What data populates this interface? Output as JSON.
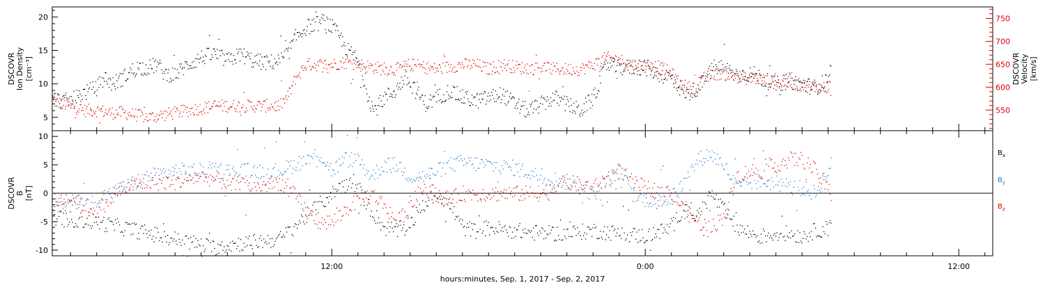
{
  "figure": {
    "xlabel": "hours:minutes, Sep.  1, 2017 - Sep.  2, 2017",
    "x_tick_labels": [
      {
        "hour": 12,
        "label": "12:00"
      },
      {
        "hour": 24,
        "label": "0:00"
      },
      {
        "hour": 36,
        "label": "12:00"
      }
    ],
    "xlim_hours": [
      1.3,
      37.3
    ]
  },
  "chart_data": [
    {
      "type": "scatter",
      "panel": "top",
      "x_units": "hours since 0:00 Sep. 1, 2017",
      "ylabel_left": [
        "DSCOVR",
        "Ion Density",
        "[cm⁻³]"
      ],
      "ylabel_right": [
        "DSCOVR",
        "Velocity",
        "[km/s]"
      ],
      "ylim_left": [
        3,
        21.5
      ],
      "yticks_left": [
        5,
        10,
        15,
        20
      ],
      "ylim_right": [
        505,
        775
      ],
      "yticks_right": [
        550,
        600,
        650,
        700,
        750
      ],
      "series": [
        {
          "axis": "left",
          "color": "#000000",
          "points": [
            [
              1.3,
              8
            ],
            [
              1.6,
              7.5
            ],
            [
              2,
              7.5
            ],
            [
              2.4,
              8.5
            ],
            [
              3,
              9.5
            ],
            [
              3.3,
              11
            ],
            [
              3.6,
              10
            ],
            [
              4,
              11
            ],
            [
              4.5,
              12.5
            ],
            [
              5,
              12.5
            ],
            [
              5.3,
              13
            ],
            [
              5.6,
              11.5
            ],
            [
              6,
              11.5
            ],
            [
              6.5,
              13
            ],
            [
              7,
              14
            ],
            [
              7.5,
              14.5
            ],
            [
              8,
              13.5
            ],
            [
              8.5,
              14.5
            ],
            [
              9,
              13.5
            ],
            [
              9.5,
              13.2
            ],
            [
              10,
              13.5
            ],
            [
              10.3,
              14.5
            ],
            [
              10.6,
              17
            ],
            [
              11,
              18.5
            ],
            [
              11.4,
              19
            ],
            [
              11.7,
              19.5
            ],
            [
              12,
              18.5
            ],
            [
              12.3,
              17
            ],
            [
              12.6,
              15
            ],
            [
              12.9,
              14
            ],
            [
              13.2,
              11
            ],
            [
              13.4,
              8
            ],
            [
              13.6,
              6
            ],
            [
              14,
              8
            ],
            [
              14.4,
              9
            ],
            [
              14.8,
              11
            ],
            [
              15.2,
              9
            ],
            [
              15.6,
              7
            ],
            [
              16,
              8
            ],
            [
              16.5,
              9
            ],
            [
              17,
              8
            ],
            [
              17.5,
              7.5
            ],
            [
              18,
              8
            ],
            [
              18.5,
              8.5
            ],
            [
              19,
              7
            ],
            [
              19.5,
              6
            ],
            [
              20,
              7
            ],
            [
              20.5,
              8
            ],
            [
              21,
              7
            ],
            [
              21.5,
              6
            ],
            [
              22,
              8
            ],
            [
              22.5,
              13
            ],
            [
              23,
              12.5
            ],
            [
              23.5,
              12.5
            ],
            [
              24,
              12.5
            ],
            [
              24.5,
              11.5
            ],
            [
              25,
              11
            ],
            [
              25.3,
              9.5
            ],
            [
              25.6,
              8.5
            ],
            [
              26,
              9.5
            ],
            [
              26.3,
              11
            ],
            [
              26.6,
              12.5
            ],
            [
              27,
              12.5
            ],
            [
              27.4,
              11.5
            ],
            [
              27.8,
              11.5
            ],
            [
              28.2,
              11.5
            ],
            [
              28.6,
              10.5
            ],
            [
              29,
              10
            ],
            [
              29.5,
              10.5
            ],
            [
              30,
              10
            ],
            [
              30.5,
              9.5
            ],
            [
              30.9,
              10.5
            ],
            [
              31.1,
              12
            ]
          ]
        },
        {
          "axis": "right",
          "color": "#e00000",
          "points": [
            [
              1.3,
              570
            ],
            [
              1.6,
              565
            ],
            [
              2,
              560
            ],
            [
              2.5,
              550
            ],
            [
              3,
              550
            ],
            [
              3.5,
              545
            ],
            [
              4,
              545
            ],
            [
              4.5,
              540
            ],
            [
              5,
              535
            ],
            [
              5.5,
              540
            ],
            [
              6,
              545
            ],
            [
              6.5,
              550
            ],
            [
              7,
              555
            ],
            [
              7.5,
              560
            ],
            [
              8,
              560
            ],
            [
              8.5,
              560
            ],
            [
              9,
              560
            ],
            [
              9.5,
              560
            ],
            [
              10,
              560
            ],
            [
              10.3,
              580
            ],
            [
              10.6,
              620
            ],
            [
              11,
              650
            ],
            [
              11.5,
              650
            ],
            [
              12,
              650
            ],
            [
              12.5,
              655
            ],
            [
              13,
              650
            ],
            [
              13.5,
              645
            ],
            [
              14,
              640
            ],
            [
              14.5,
              640
            ],
            [
              15,
              650
            ],
            [
              15.5,
              645
            ],
            [
              16,
              640
            ],
            [
              16.5,
              645
            ],
            [
              17,
              650
            ],
            [
              17.5,
              650
            ],
            [
              18,
              640
            ],
            [
              18.5,
              650
            ],
            [
              19,
              645
            ],
            [
              19.5,
              640
            ],
            [
              20,
              645
            ],
            [
              20.5,
              640
            ],
            [
              21,
              640
            ],
            [
              21.5,
              640
            ],
            [
              22,
              650
            ],
            [
              22.5,
              665
            ],
            [
              23,
              660
            ],
            [
              23.5,
              650
            ],
            [
              24,
              650
            ],
            [
              24.5,
              645
            ],
            [
              25,
              630
            ],
            [
              25.3,
              610
            ],
            [
              25.6,
              600
            ],
            [
              26,
              600
            ],
            [
              26.3,
              620
            ],
            [
              26.6,
              630
            ],
            [
              27,
              630
            ],
            [
              27.4,
              625
            ],
            [
              27.8,
              620
            ],
            [
              28.2,
              620
            ],
            [
              28.6,
              615
            ],
            [
              29,
              610
            ],
            [
              29.5,
              610
            ],
            [
              30,
              605
            ],
            [
              30.5,
              600
            ],
            [
              30.9,
              600
            ],
            [
              31.1,
              605
            ]
          ]
        }
      ]
    },
    {
      "type": "scatter",
      "panel": "bottom",
      "x_units": "hours since 0:00 Sep. 1, 2017",
      "ylabel_left": [
        "DSCOVR",
        "B",
        "[nT]"
      ],
      "ylim": [
        -11,
        11
      ],
      "yticks": [
        -10,
        -5,
        0,
        5,
        10
      ],
      "zero_line": true,
      "legend_placement": "right",
      "series": [
        {
          "name": "B",
          "subscript": "x",
          "color": "#000000",
          "points": [
            [
              1.3,
              -4
            ],
            [
              2,
              -4.5
            ],
            [
              3,
              -5
            ],
            [
              4,
              -6
            ],
            [
              5,
              -7
            ],
            [
              6,
              -8
            ],
            [
              7,
              -9
            ],
            [
              7.5,
              -9.5
            ],
            [
              8,
              -9
            ],
            [
              9,
              -8.5
            ],
            [
              10,
              -8
            ],
            [
              10.5,
              -6
            ],
            [
              11,
              -4
            ],
            [
              11.5,
              -2
            ],
            [
              12,
              0
            ],
            [
              12.5,
              2
            ],
            [
              13,
              1
            ],
            [
              13.5,
              -3
            ],
            [
              14,
              -6
            ],
            [
              14.5,
              -6.5
            ],
            [
              15,
              -5
            ],
            [
              15.5,
              -2
            ],
            [
              16,
              0
            ],
            [
              16.5,
              -2
            ],
            [
              17,
              -6
            ],
            [
              17.5,
              -6.5
            ],
            [
              18,
              -6
            ],
            [
              19,
              -6.5
            ],
            [
              20,
              -7
            ],
            [
              21,
              -7
            ],
            [
              22,
              -6.5
            ],
            [
              23,
              -7
            ],
            [
              24,
              -7.5
            ],
            [
              25,
              -6
            ],
            [
              25.5,
              -2
            ],
            [
              26,
              -4
            ],
            [
              26.5,
              0
            ],
            [
              27,
              -3
            ],
            [
              27.5,
              -6
            ],
            [
              28,
              -7
            ],
            [
              28.5,
              -7.5
            ],
            [
              29,
              -7
            ],
            [
              29.5,
              -7
            ],
            [
              30,
              -7.5
            ],
            [
              30.5,
              -6.5
            ],
            [
              31.1,
              -6
            ]
          ]
        },
        {
          "name": "B",
          "subscript": "y",
          "color": "#1f78d1",
          "points": [
            [
              1.3,
              -3
            ],
            [
              2,
              -1
            ],
            [
              3,
              -1
            ],
            [
              4,
              1
            ],
            [
              5,
              3
            ],
            [
              6,
              4
            ],
            [
              7,
              4
            ],
            [
              8,
              4
            ],
            [
              9,
              4
            ],
            [
              10,
              4
            ],
            [
              10.5,
              5
            ],
            [
              11,
              6
            ],
            [
              11.5,
              7
            ],
            [
              12,
              4
            ],
            [
              12.5,
              6
            ],
            [
              13,
              6
            ],
            [
              13.5,
              3
            ],
            [
              14,
              5
            ],
            [
              14.5,
              5
            ],
            [
              15,
              3
            ],
            [
              15.5,
              3
            ],
            [
              16,
              4
            ],
            [
              16.5,
              5
            ],
            [
              17,
              5.5
            ],
            [
              18,
              5
            ],
            [
              19,
              4.5
            ],
            [
              20,
              3
            ],
            [
              21,
              2
            ],
            [
              22,
              0
            ],
            [
              22.5,
              2
            ],
            [
              23,
              4
            ],
            [
              23.5,
              0
            ],
            [
              24,
              -1
            ],
            [
              25,
              -1
            ],
            [
              25.5,
              2
            ],
            [
              26,
              6
            ],
            [
              26.5,
              7
            ],
            [
              27,
              5
            ],
            [
              27.5,
              1
            ],
            [
              28,
              2
            ],
            [
              28.5,
              2
            ],
            [
              29,
              2
            ],
            [
              29.5,
              1
            ],
            [
              30,
              1
            ],
            [
              30.5,
              0
            ],
            [
              31.1,
              5
            ]
          ]
        },
        {
          "name": "B",
          "subscript": "z",
          "color": "#e00000",
          "points": [
            [
              1.3,
              -1
            ],
            [
              2,
              -1
            ],
            [
              3,
              -3
            ],
            [
              4,
              1
            ],
            [
              5,
              2
            ],
            [
              6,
              2
            ],
            [
              7,
              3
            ],
            [
              8,
              2
            ],
            [
              9,
              1
            ],
            [
              10,
              2
            ],
            [
              10.5,
              0
            ],
            [
              11,
              -3
            ],
            [
              11.5,
              -5
            ],
            [
              12,
              -5
            ],
            [
              12.5,
              -3
            ],
            [
              13,
              -1
            ],
            [
              13.5,
              0
            ],
            [
              14,
              -2
            ],
            [
              14.5,
              -5
            ],
            [
              15,
              -2
            ],
            [
              15.5,
              1
            ],
            [
              16,
              0
            ],
            [
              16.5,
              -1
            ],
            [
              17,
              0
            ],
            [
              18,
              0
            ],
            [
              19,
              0
            ],
            [
              20,
              0
            ],
            [
              21,
              2
            ],
            [
              22,
              1
            ],
            [
              23,
              4
            ],
            [
              23.5,
              2
            ],
            [
              24,
              1
            ],
            [
              25,
              0
            ],
            [
              25.5,
              -3
            ],
            [
              26,
              -5
            ],
            [
              26.5,
              -6
            ],
            [
              27,
              -4
            ],
            [
              27.5,
              3
            ],
            [
              28,
              4
            ],
            [
              28.5,
              4
            ],
            [
              29,
              5
            ],
            [
              29.5,
              6
            ],
            [
              30,
              6
            ],
            [
              30.5,
              4
            ],
            [
              31.1,
              0
            ]
          ]
        }
      ]
    }
  ]
}
